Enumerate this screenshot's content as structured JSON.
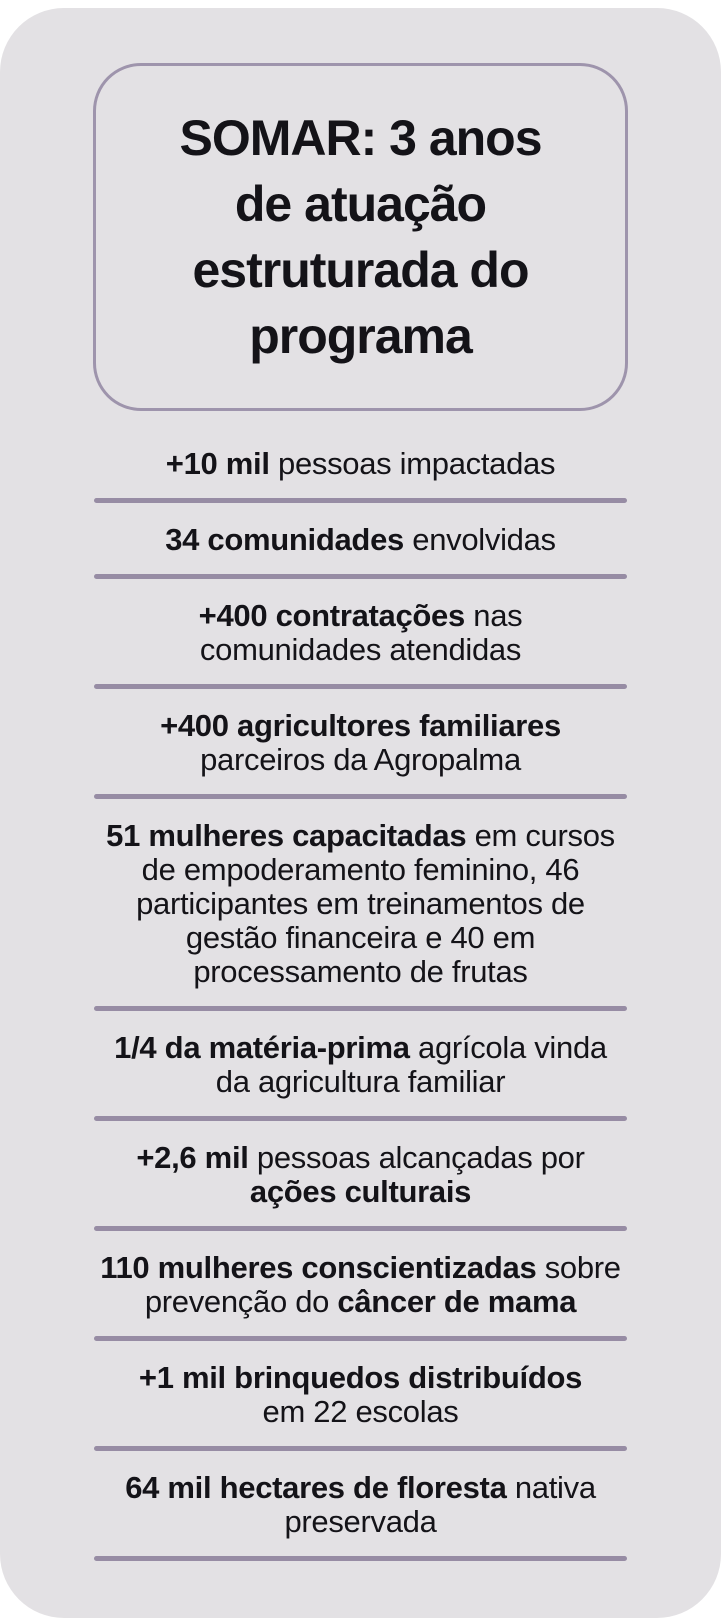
{
  "theme": {
    "page_background": "#ffffff",
    "card_background": "#e3e1e4",
    "accent_purple": "#978ca4",
    "title_box_border": "#9e94ac",
    "text_color": "#141318"
  },
  "title": {
    "text": "SOMAR: 3 anos\nde atuação\nestruturada do\nprograma"
  },
  "stats": {
    "items": [
      {
        "segments": [
          {
            "text": "+10 mil",
            "bold": true
          },
          {
            "text": " pessoas impactadas",
            "bold": false
          }
        ]
      },
      {
        "segments": [
          {
            "text": "34 comunidades",
            "bold": true
          },
          {
            "text": " envolvidas",
            "bold": false
          }
        ]
      },
      {
        "segments": [
          {
            "text": "+400 contratações",
            "bold": true
          },
          {
            "text": " nas\ncomunidades atendidas",
            "bold": false
          }
        ]
      },
      {
        "segments": [
          {
            "text": "+400 agricultores familiares",
            "bold": true
          },
          {
            "text": "\nparceiros da Agropalma",
            "bold": false
          }
        ]
      },
      {
        "segments": [
          {
            "text": "51 mulheres capacitadas",
            "bold": true
          },
          {
            "text": " em cursos\nde empoderamento feminino, 46\nparticipantes em treinamentos de\ngestão financeira e 40 em\nprocessamento de frutas",
            "bold": false
          }
        ]
      },
      {
        "segments": [
          {
            "text": "1/4 da matéria-prima",
            "bold": true
          },
          {
            "text": " agrícola vinda\nda agricultura familiar",
            "bold": false
          }
        ]
      },
      {
        "segments": [
          {
            "text": "+2,6 mil",
            "bold": true
          },
          {
            "text": " pessoas alcançadas por\n",
            "bold": false
          },
          {
            "text": "ações culturais",
            "bold": true
          }
        ]
      },
      {
        "segments": [
          {
            "text": "110 mulheres conscientizadas",
            "bold": true
          },
          {
            "text": " sobre\nprevenção do ",
            "bold": false
          },
          {
            "text": "câncer de mama",
            "bold": true
          }
        ]
      },
      {
        "segments": [
          {
            "text": "+1 mil brinquedos distribuídos",
            "bold": true
          },
          {
            "text": "\nem 22 escolas",
            "bold": false
          }
        ]
      },
      {
        "segments": [
          {
            "text": "64 mil hectares de floresta",
            "bold": true
          },
          {
            "text": " nativa\npreservada",
            "bold": false
          }
        ]
      }
    ]
  }
}
